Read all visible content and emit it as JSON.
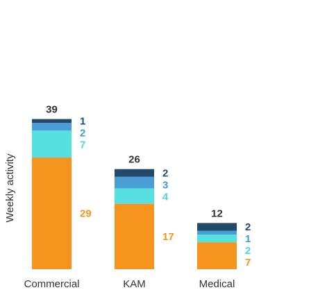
{
  "chart_data": {
    "type": "bar",
    "stacked": true,
    "ylabel": "Weekly activity",
    "xlabel": "",
    "grid": false,
    "legend": "none",
    "categories": [
      "Commercial",
      "KAM",
      "Medical"
    ],
    "totals": [
      39,
      26,
      12
    ],
    "series": [
      {
        "values": [
          29,
          17,
          7
        ],
        "color": "#F7941D"
      },
      {
        "values": [
          7,
          4,
          2
        ],
        "color": "#56E0E0"
      },
      {
        "values": [
          2,
          3,
          1
        ],
        "color": "#4A9ED8"
      },
      {
        "values": [
          1,
          2,
          2
        ],
        "color": "#23496B"
      }
    ],
    "label_colors": [
      "#F7941D",
      "#4FD6D6",
      "#3E9BD6",
      "#23496B"
    ]
  }
}
